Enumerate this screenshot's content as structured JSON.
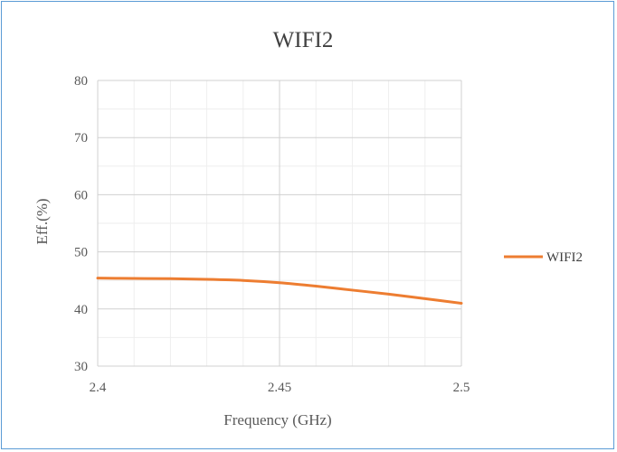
{
  "chart_data": {
    "type": "line",
    "title": "WIFI2",
    "xlabel": "Frequency (GHz)",
    "ylabel": "Eff.(%)",
    "xlim": [
      2.4,
      2.5
    ],
    "ylim": [
      30,
      80
    ],
    "x_major_ticks": [
      2.4,
      2.45,
      2.5
    ],
    "x_tick_labels": [
      "2.4",
      "2.45",
      "2.5"
    ],
    "y_major_ticks": [
      30,
      40,
      50,
      60,
      70,
      80
    ],
    "y_tick_labels": [
      "30",
      "40",
      "50",
      "60",
      "70",
      "80"
    ],
    "x_minor_step": 0.01,
    "y_minor_step": 5,
    "grid": true,
    "legend_position": "right",
    "series": [
      {
        "name": "WIFI2",
        "color": "#ed7d31",
        "x": [
          2.4,
          2.41,
          2.42,
          2.43,
          2.44,
          2.45,
          2.46,
          2.47,
          2.48,
          2.49,
          2.5
        ],
        "y": [
          45.4,
          45.35,
          45.3,
          45.2,
          45.0,
          44.6,
          44.0,
          43.3,
          42.6,
          41.8,
          41.0
        ]
      }
    ]
  }
}
